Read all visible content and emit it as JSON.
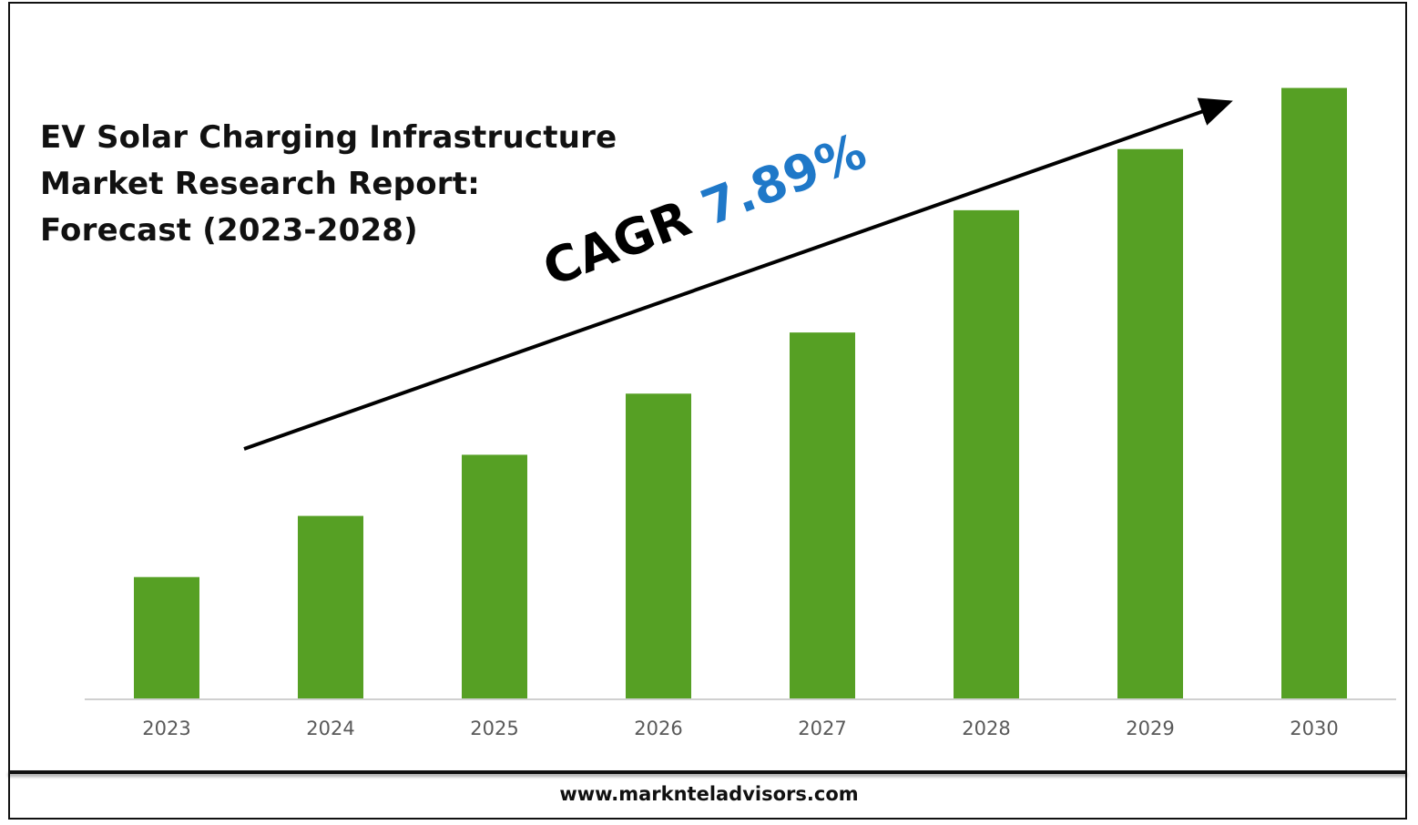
{
  "header": {
    "title": "EV Solar Charging Infrastructure\nMarket Research Report:\nForecast (2023-2028)"
  },
  "annotation": {
    "cagr_label": "CAGR ",
    "cagr_value": "7.89%",
    "cagr_value_color": "#1f78c8"
  },
  "footer": {
    "url": "www.marknteladvisors.com"
  },
  "colors": {
    "bar": "#56a024",
    "axis": "#d0d0d0",
    "tick_label": "#595959",
    "arrow": "#000000"
  },
  "chart_data": {
    "type": "bar",
    "title": "EV Solar Charging Infrastructure Market Research Report: Forecast (2023-2028)",
    "categories": [
      "2023",
      "2024",
      "2025",
      "2026",
      "2027",
      "2028",
      "2029",
      "2030"
    ],
    "values": [
      20,
      30,
      40,
      50,
      60,
      80,
      90,
      100
    ],
    "ylim": [
      0,
      105
    ],
    "xlabel": "",
    "ylabel": "",
    "grid": false,
    "legend": "none",
    "annotation": "CAGR 7.89%"
  }
}
